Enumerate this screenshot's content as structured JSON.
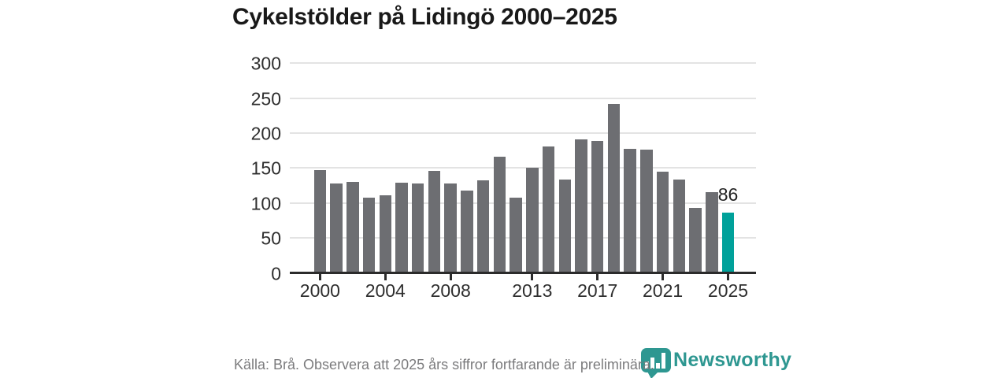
{
  "title": "Cykelstölder på Lidingö 2000–2025",
  "chart_data": {
    "type": "bar",
    "categories": [
      2000,
      2001,
      2002,
      2003,
      2004,
      2005,
      2006,
      2007,
      2008,
      2009,
      2010,
      2011,
      2012,
      2013,
      2014,
      2015,
      2016,
      2017,
      2018,
      2019,
      2020,
      2021,
      2022,
      2023,
      2024,
      2025
    ],
    "values": [
      147,
      128,
      130,
      108,
      111,
      129,
      128,
      146,
      128,
      118,
      132,
      166,
      108,
      150,
      181,
      133,
      191,
      189,
      242,
      178,
      176,
      145,
      133,
      93,
      116,
      86
    ],
    "title": "Cykelstölder på Lidingö 2000–2025",
    "xlabel": "",
    "ylabel": "",
    "ylim": [
      0,
      300
    ],
    "ytick_labels": [
      "0",
      "50",
      "100",
      "150",
      "200",
      "250",
      "300"
    ],
    "yticks": [
      0,
      50,
      100,
      150,
      200,
      250,
      300
    ],
    "xticks": [
      2000,
      2004,
      2008,
      2013,
      2017,
      2021,
      2025
    ],
    "grid": true,
    "legend_position": "none",
    "bar_color": "#6d6e72",
    "highlight_index": 25,
    "highlight_color": "#00a19a",
    "annotation": {
      "index": 25,
      "label": "86"
    }
  },
  "footer": {
    "source_text": "Källa: Brå. Observera att 2025 års siffror fortfarande är preliminära.",
    "brand": "Newsworthy"
  },
  "colors": {
    "title_text": "#191919",
    "axis_text": "#2e2e2e",
    "axis_line": "#2b2b2b",
    "gridline": "#e3e3e3",
    "bar_gray": "#6d6e72",
    "accent_teal": "#00a19a",
    "logo_teal": "#2e9791",
    "footer_text": "#7b7b7d"
  }
}
